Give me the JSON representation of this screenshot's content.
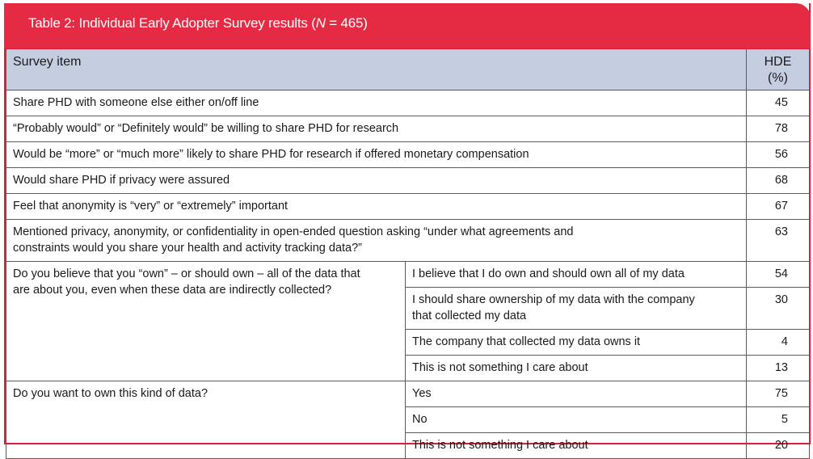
{
  "title": {
    "prefix": "Table 2: Individual Early Adopter Survey results (",
    "n_symbol": "N",
    "n_value": " = 465)"
  },
  "header": {
    "item": "Survey item",
    "hde": "HDE (%)"
  },
  "rows": [
    {
      "item": "Share PHD with someone else either on/off line",
      "value": "45"
    },
    {
      "item": "“Probably would” or “Definitely would” be willing to share PHD for research",
      "value": "78"
    },
    {
      "item": "Would be “more” or “much more” likely to share PHD for research if offered monetary compensation",
      "value": "56"
    },
    {
      "item": "Would share PHD if privacy were assured",
      "value": "68"
    },
    {
      "item": "Feel that anonymity is “very” or “extremely” important",
      "value": "67"
    },
    {
      "item": "Mentioned privacy, anonymity, or confidentiality in open-ended question asking “under what agreements and constraints would you share your health and activity tracking data?”",
      "value": "63"
    }
  ],
  "groups": [
    {
      "question": "Do you believe that you “own” – or should own – all of the data that are about you, even when these data are indirectly collected?",
      "answers": [
        {
          "label": "I believe that I do own and should own all of my data",
          "value": "54"
        },
        {
          "label": "I should share ownership of my data with the company that collected my data",
          "value": "30"
        },
        {
          "label": "The company that collected my data owns it",
          "value": "4"
        },
        {
          "label": "This is not something I care about",
          "value": "13"
        }
      ]
    },
    {
      "question": "Do you want to own this kind of data?",
      "answers": [
        {
          "label": "Yes",
          "value": "75"
        },
        {
          "label": "No",
          "value": "5"
        },
        {
          "label": "This is not something I care about",
          "value": "20"
        }
      ]
    }
  ]
}
